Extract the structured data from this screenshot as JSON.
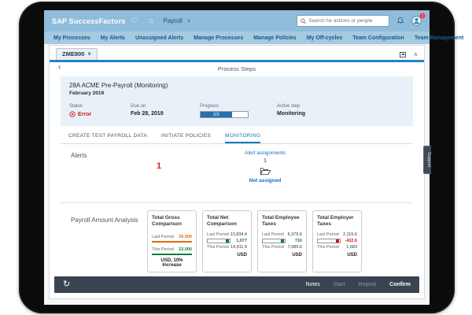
{
  "topbar": {
    "brand": "SAP SuccessFactors",
    "module": "Payroll",
    "search_placeholder": "Search for actions or people",
    "badge_count": "9"
  },
  "nav_items": [
    "My Processes",
    "My Alerts",
    "Unassigned Alerts",
    "Manage Processes",
    "Manage Policies",
    "My Off-cycles",
    "Team Configuration",
    "Team Management"
  ],
  "panel": {
    "process_tab": "ZME800",
    "header_title": "Process Steps",
    "process": {
      "title": "28A ACME Pre-Payroll (Monitoring)",
      "period": "February 2019",
      "status_label": "Status",
      "status_value": "Error",
      "due_label": "Due on",
      "due_value": "Feb 28, 2019",
      "progress_label": "Progress",
      "progress_text": "2/3",
      "progress_percent": 66,
      "active_step_label": "Active step",
      "active_step_value": "Monitoring"
    },
    "step_tabs": [
      {
        "label": "CREATE TEST PAYROLL DATA",
        "active": false
      },
      {
        "label": "INITIATE POLICIES",
        "active": false
      },
      {
        "label": "MONITORING",
        "active": true
      }
    ],
    "alerts": {
      "section_label": "Alerts",
      "alert_count": "1",
      "assignments_label": "Alert assignments",
      "assignments_count": "1",
      "assignments_status": "Not assigned"
    },
    "analysis": {
      "section_label": "Payroll Amount Analysis",
      "cards": [
        {
          "type": "underline",
          "title": "Total Gross Comparison",
          "rows": [
            {
              "label": "Last Period",
              "value": "20,000",
              "color": "#e26c0e"
            },
            {
              "label": "This Period",
              "value": "22,000",
              "color": "#107e3e"
            }
          ],
          "footer": "USD, 10% Increase"
        },
        {
          "type": "bar",
          "title": "Total Net Comparison",
          "last_label": "Last Period",
          "last_value": "13,834.4",
          "delta": "1,077",
          "delta_color": "#107e3e",
          "this_label": "This Period",
          "this_value": "14,911.4",
          "footer": "USD"
        },
        {
          "type": "bar",
          "title": "Total Employee Taxes",
          "last_label": "Last Period",
          "last_value": "6,375.6",
          "delta": "710",
          "delta_color": "#107e3e",
          "this_label": "This Period",
          "this_value": "7,085.6",
          "footer": "USD"
        },
        {
          "type": "bar",
          "title": "Total Employer Taxes",
          "last_label": "Last Period",
          "last_value": "2,115.6",
          "delta": "-432.6",
          "delta_color": "#cc1919",
          "this_label": "This Period",
          "this_value": "1,683",
          "footer": "USD"
        }
      ]
    }
  },
  "footer": {
    "buttons": [
      {
        "label": "Notes",
        "enabled": true,
        "primary": false
      },
      {
        "label": "Start",
        "enabled": false,
        "primary": false
      },
      {
        "label": "Repeat",
        "enabled": false,
        "primary": false
      },
      {
        "label": "Confirm",
        "enabled": true,
        "primary": true
      }
    ]
  },
  "support_tab": "Support",
  "icons": {
    "heart": "♡",
    "home": "⌂",
    "module_chevron": "∨",
    "tab_chevron": "∨",
    "collapse": "∧",
    "back": "‹",
    "refresh": "↻"
  },
  "colors": {
    "accent_blue": "#0a7cc4",
    "link_blue": "#0a6ed1",
    "error_red": "#cc1919",
    "positive_green": "#107e3e",
    "warn_orange": "#e26c0e",
    "topbar_blue": "#8fbcda",
    "navbar_blue": "#a6c9e0",
    "footer_dark": "#3a4450"
  }
}
